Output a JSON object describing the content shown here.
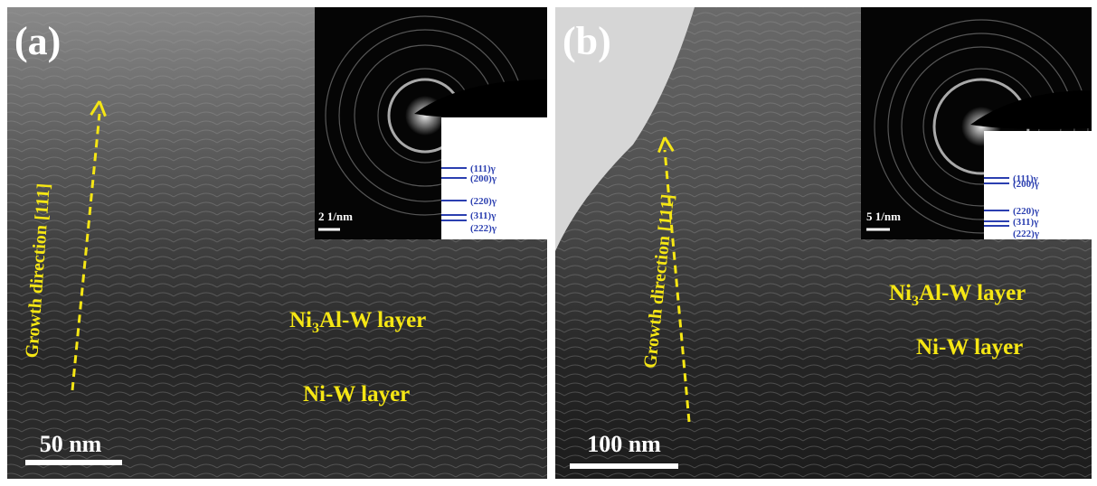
{
  "panels": [
    {
      "label": "(a)",
      "growth_direction": "Growth direction [111]",
      "upper_layer": {
        "prefix": "Ni",
        "subscript": "3",
        "suffix": "Al-W layer"
      },
      "lower_layer": "Ni-W layer",
      "scale_bar": "50 nm",
      "inset_scale_bar": "2 1/nm",
      "reflections": [
        "(111)γ",
        "(200)γ",
        "(220)γ",
        "(311)γ",
        "(222)γ"
      ]
    },
    {
      "label": "(b)",
      "growth_direction": "Growth direction [111]",
      "upper_layer": {
        "prefix": "Ni",
        "subscript": "3",
        "suffix": "Al-W layer"
      },
      "lower_layer": "Ni-W layer",
      "scale_bar": "100 nm",
      "inset_scale_bar": "5 1/nm",
      "reflections": [
        "(111)γ",
        "(200)γ",
        "(220)γ",
        "(311)γ",
        "(222)γ"
      ]
    }
  ]
}
